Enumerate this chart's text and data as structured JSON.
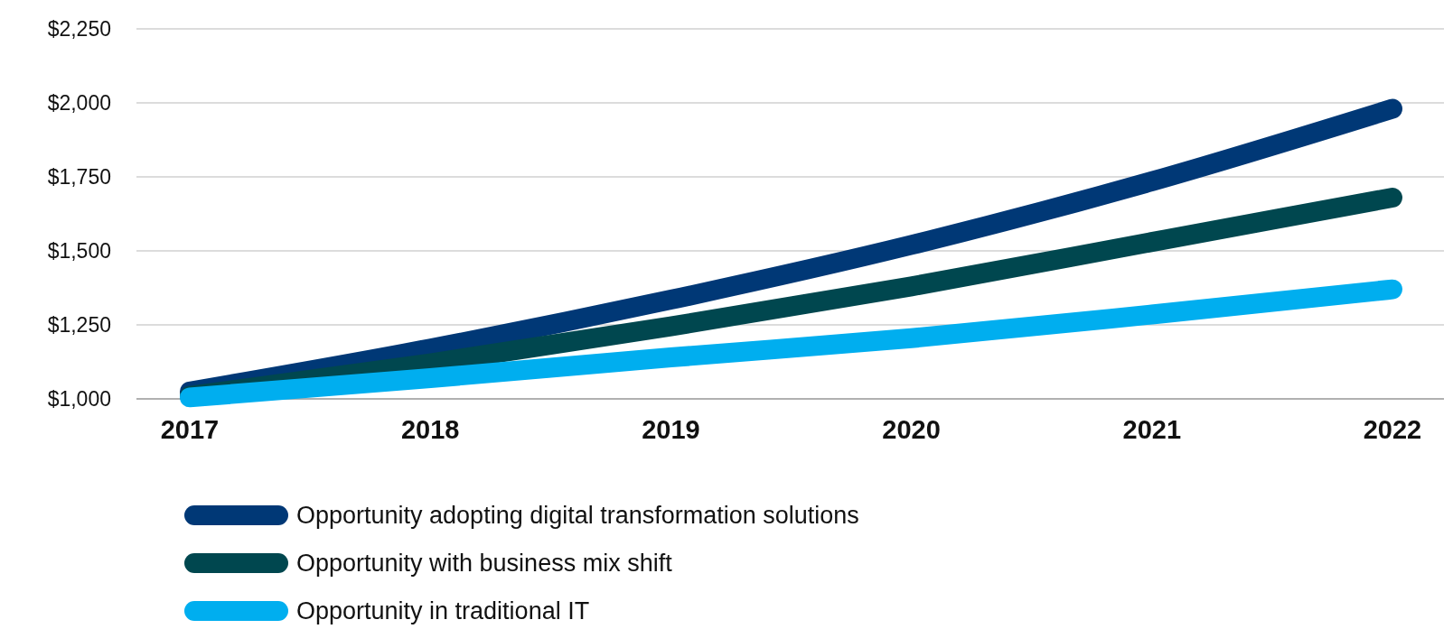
{
  "chart_data": {
    "type": "line",
    "categories": [
      "2017",
      "2018",
      "2019",
      "2020",
      "2021",
      "2022"
    ],
    "series": [
      {
        "name": "Opportunity adopting digital transformation solutions",
        "color": "#003876",
        "values": [
          1025,
          1170,
          1335,
          1520,
          1735,
          1980
        ]
      },
      {
        "name": "Opportunity with business mix shift",
        "color": "#00474f",
        "values": [
          1010,
          1120,
          1245,
          1380,
          1530,
          1680
        ]
      },
      {
        "name": "Opportunity in traditional IT",
        "color": "#00aeef",
        "values": [
          1005,
          1070,
          1140,
          1205,
          1285,
          1370
        ]
      }
    ],
    "ylim": [
      1000,
      2250
    ],
    "yticks": [
      {
        "value": 1000,
        "label": "$1,000"
      },
      {
        "value": 1250,
        "label": "$1,250"
      },
      {
        "value": 1500,
        "label": "$1,500"
      },
      {
        "value": 1750,
        "label": "$1,750"
      },
      {
        "value": 2000,
        "label": "$2,000"
      },
      {
        "value": 2250,
        "label": "$2,250"
      }
    ],
    "grid": "y",
    "legend": "bottom",
    "marker": "none",
    "line_style": "solid"
  }
}
